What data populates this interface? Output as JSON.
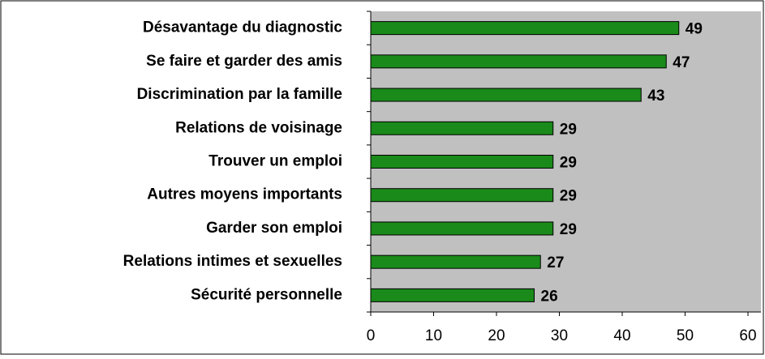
{
  "chart_data": {
    "type": "barh",
    "categories": [
      "Désavantage du diagnostic",
      "Se faire et garder des amis",
      "Discrimination par la famille",
      "Relations de voisinage",
      "Trouver un emploi",
      "Autres moyens importants",
      "Garder son emploi",
      "Relations intimes et sexuelles",
      "Sécurité personnelle"
    ],
    "values": [
      49,
      47,
      43,
      29,
      29,
      29,
      29,
      27,
      26
    ],
    "color": "#1a8a1a",
    "xlim": [
      0,
      60
    ],
    "xticks": [
      0,
      10,
      20,
      30,
      40,
      50,
      60
    ],
    "grid": false
  }
}
